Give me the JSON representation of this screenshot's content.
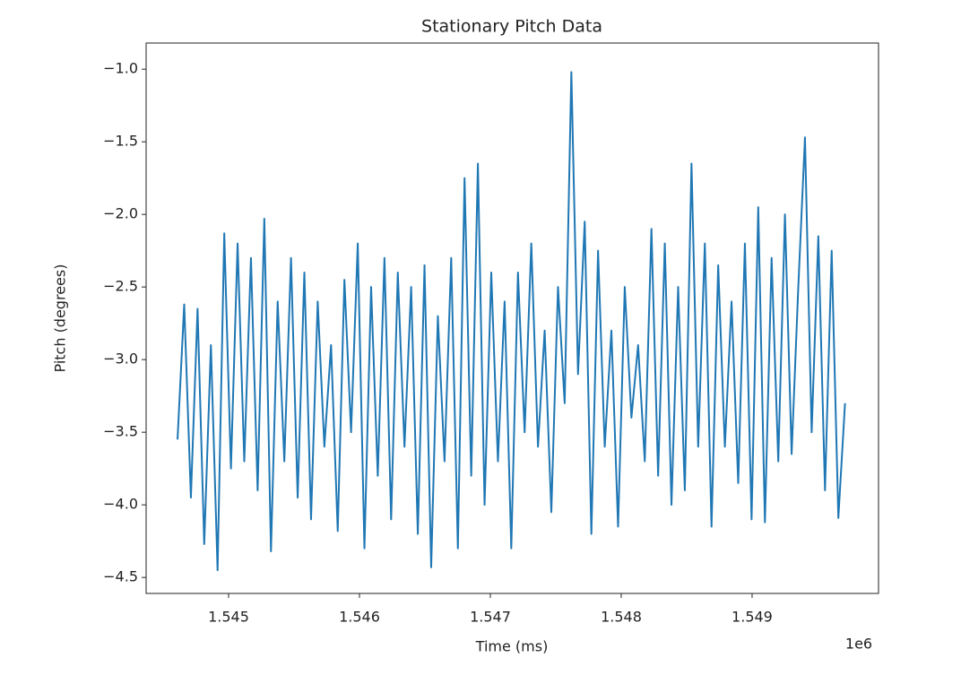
{
  "chart_data": {
    "type": "line",
    "title": "Stationary Pitch Data",
    "xlabel": "Time (ms)",
    "ylabel": "Pitch (degrees)",
    "x_offset_label": "1e6",
    "color": "#1f77b4",
    "grid": false,
    "xlim": [
      1544370,
      1549966
    ],
    "ylim": [
      -4.61,
      -0.82
    ],
    "xticks": [
      {
        "value": 1545000,
        "label": "1.545"
      },
      {
        "value": 1546000,
        "label": "1.546"
      },
      {
        "value": 1547000,
        "label": "1.547"
      },
      {
        "value": 1548000,
        "label": "1.548"
      },
      {
        "value": 1549000,
        "label": "1.549"
      }
    ],
    "yticks": [
      {
        "value": -1.0,
        "label": "−1.0"
      },
      {
        "value": -1.5,
        "label": "−1.5"
      },
      {
        "value": -2.0,
        "label": "−2.0"
      },
      {
        "value": -2.5,
        "label": "−2.5"
      },
      {
        "value": -3.0,
        "label": "−3.0"
      },
      {
        "value": -3.5,
        "label": "−3.5"
      },
      {
        "value": -4.0,
        "label": "−4.0"
      },
      {
        "value": -4.5,
        "label": "−4.5"
      }
    ],
    "x": [
      1544610,
      1544661,
      1544712,
      1544763,
      1544814,
      1544865,
      1544916,
      1544967,
      1545018,
      1545069,
      1545120,
      1545171,
      1545222,
      1545273,
      1545324,
      1545375,
      1545426,
      1545477,
      1545528,
      1545579,
      1545630,
      1545681,
      1545732,
      1545783,
      1545834,
      1545885,
      1545936,
      1545987,
      1546038,
      1546089,
      1546140,
      1546191,
      1546242,
      1546293,
      1546344,
      1546395,
      1546446,
      1546497,
      1546548,
      1546599,
      1546650,
      1546701,
      1546752,
      1546803,
      1546854,
      1546905,
      1546956,
      1547007,
      1547058,
      1547109,
      1547160,
      1547211,
      1547262,
      1547313,
      1547364,
      1547415,
      1547466,
      1547517,
      1547568,
      1547619,
      1547670,
      1547721,
      1547772,
      1547823,
      1547874,
      1547925,
      1547976,
      1548027,
      1548078,
      1548129,
      1548180,
      1548231,
      1548282,
      1548333,
      1548384,
      1548435,
      1548486,
      1548537,
      1548588,
      1548639,
      1548690,
      1548741,
      1548792,
      1548843,
      1548894,
      1548945,
      1548996,
      1549047,
      1549098,
      1549149,
      1549200,
      1549251,
      1549302,
      1549353,
      1549404,
      1549455,
      1549506,
      1549557,
      1549608,
      1549659,
      1549710
    ],
    "values": [
      -3.55,
      -2.62,
      -3.95,
      -2.65,
      -4.27,
      -2.9,
      -4.45,
      -2.13,
      -3.75,
      -2.2,
      -3.7,
      -2.3,
      -3.9,
      -2.03,
      -4.32,
      -2.6,
      -3.7,
      -2.3,
      -3.95,
      -2.4,
      -4.1,
      -2.6,
      -3.6,
      -2.9,
      -4.18,
      -2.45,
      -3.5,
      -2.2,
      -4.3,
      -2.5,
      -3.8,
      -2.3,
      -4.1,
      -2.4,
      -3.6,
      -2.5,
      -4.2,
      -2.35,
      -4.43,
      -2.7,
      -3.7,
      -2.3,
      -4.3,
      -1.75,
      -3.8,
      -1.65,
      -4.0,
      -2.4,
      -3.7,
      -2.6,
      -4.3,
      -2.4,
      -3.5,
      -2.2,
      -3.6,
      -2.8,
      -4.05,
      -2.5,
      -3.3,
      -1.02,
      -3.1,
      -2.05,
      -4.2,
      -2.25,
      -3.6,
      -2.8,
      -4.15,
      -2.5,
      -3.4,
      -2.9,
      -3.7,
      -2.1,
      -3.8,
      -2.2,
      -4.0,
      -2.5,
      -3.9,
      -1.65,
      -3.6,
      -2.2,
      -4.15,
      -2.35,
      -3.6,
      -2.6,
      -3.85,
      -2.2,
      -4.1,
      -1.95,
      -4.12,
      -2.3,
      -3.7,
      -2.0,
      -3.65,
      -2.5,
      -1.47,
      -3.5,
      -2.15,
      -3.9,
      -2.25,
      -4.09,
      -3.3
    ]
  }
}
